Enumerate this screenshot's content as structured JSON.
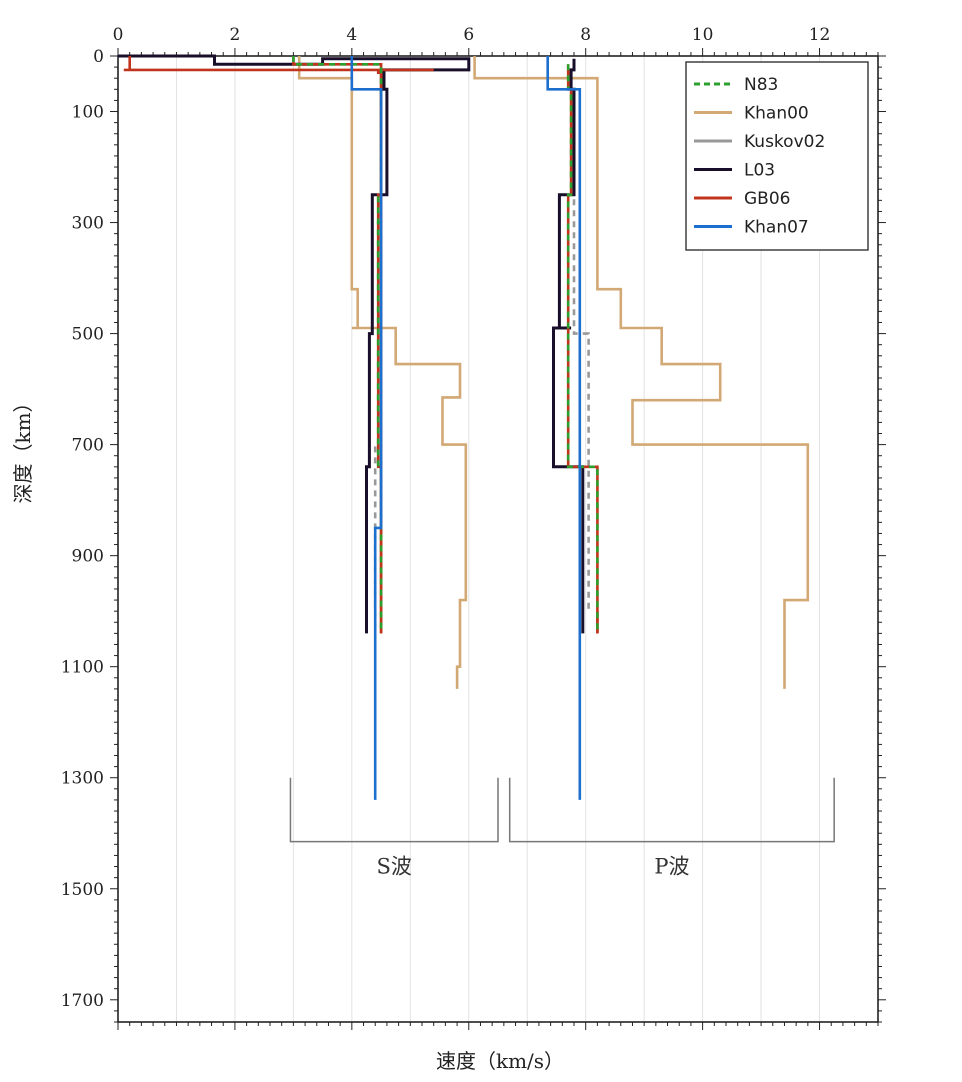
{
  "chart_data": {
    "type": "line",
    "xlabel": "速度（km/s）",
    "ylabel": "深度（km）",
    "xlim": [
      0,
      13
    ],
    "ylim": [
      0,
      1740
    ],
    "x_ticks": [
      0,
      2,
      4,
      6,
      8,
      10,
      12
    ],
    "y_ticks": [
      0,
      100,
      300,
      500,
      700,
      900,
      1100,
      1300,
      1500,
      1700
    ],
    "grid": "vertical",
    "legend_position": "top-right",
    "brackets": [
      {
        "label": "S波",
        "x_range": [
          2.95,
          6.5
        ],
        "y_top": 1300,
        "y_bottom": 1415
      },
      {
        "label": "P波",
        "x_range": [
          6.7,
          12.25
        ],
        "y_top": 1300,
        "y_bottom": 1415
      }
    ],
    "series": [
      {
        "name": "N83",
        "color": "#2ca02c",
        "style": "dashed",
        "S": {
          "v": [
            3.0,
            3.0,
            4.5,
            4.5,
            4.45,
            4.45,
            4.5,
            4.5
          ],
          "d": [
            0,
            15,
            15,
            250,
            250,
            740,
            740,
            1040
          ]
        },
        "P": {
          "v": [
            7.7,
            7.7,
            7.75,
            7.75,
            7.7,
            7.7,
            8.2,
            8.2
          ],
          "d": [
            15,
            60,
            60,
            250,
            250,
            740,
            740,
            1040
          ]
        }
      },
      {
        "name": "Khan00",
        "color": "#d2a874",
        "style": "solid",
        "S": {
          "v": [
            3.1,
            3.1,
            4.0,
            4.0,
            4.1,
            4.1,
            4.0,
            4.0,
            4.75,
            4.75,
            5.85,
            5.85,
            5.55,
            5.55,
            5.95,
            5.95,
            5.85,
            5.85,
            5.8,
            5.8
          ],
          "d": [
            0,
            40,
            40,
            420,
            420,
            490,
            490,
            490,
            490,
            555,
            555,
            615,
            615,
            700,
            700,
            980,
            980,
            1100,
            1100,
            1140
          ]
        },
        "P": {
          "v": [
            6.1,
            6.1,
            8.2,
            8.2,
            8.6,
            8.6,
            9.3,
            9.3,
            10.3,
            10.3,
            8.8,
            8.8,
            11.8,
            11.8,
            11.4,
            11.4
          ],
          "d": [
            0,
            40,
            40,
            420,
            420,
            490,
            490,
            555,
            555,
            620,
            620,
            700,
            700,
            980,
            980,
            1140
          ]
        }
      },
      {
        "name": "Kuskov02",
        "color": "#999999",
        "style": "dashed",
        "S": {
          "v": [
            4.5,
            4.5,
            4.45,
            4.45,
            4.4,
            4.4
          ],
          "d": [
            60,
            300,
            300,
            700,
            700,
            1000
          ]
        },
        "P": {
          "v": [
            7.8,
            7.8,
            8.05,
            8.05
          ],
          "d": [
            60,
            500,
            500,
            1000
          ]
        }
      },
      {
        "name": "L03",
        "color": "#1a0f2a",
        "style": "solid",
        "S": {
          "v": [
            0.0,
            1.65,
            1.65,
            3.5,
            3.5,
            6.0,
            6.0,
            4.55,
            4.55,
            4.6,
            4.6,
            4.35,
            4.35,
            4.3,
            4.3,
            4.25,
            4.25
          ],
          "d": [
            0,
            0,
            15,
            15,
            5,
            5,
            25,
            25,
            60,
            60,
            250,
            250,
            500,
            500,
            740,
            740,
            1040
          ]
        },
        "P": {
          "v": [
            7.8,
            7.8,
            7.75,
            7.75,
            7.8,
            7.8,
            7.55,
            7.55,
            7.75,
            7.75,
            7.45,
            7.45,
            7.95,
            7.95
          ],
          "d": [
            5,
            25,
            25,
            60,
            60,
            250,
            250,
            490,
            490,
            490,
            490,
            740,
            740,
            1040
          ]
        }
      },
      {
        "name": "GB06",
        "color": "#c0341d",
        "style": "solid",
        "S": {
          "v": [
            0.2,
            0.2,
            0.1,
            0.1,
            5.4,
            5.4,
            4.45,
            4.45,
            4.5,
            4.5
          ],
          "d": [
            0,
            25,
            25,
            25,
            25,
            25,
            25,
            30,
            30,
            1040
          ]
        },
        "P": {
          "v": [
            8.2,
            8.2
          ],
          "d": [
            1000,
            1040
          ]
        }
      },
      {
        "name": "Khan07",
        "color": "#1c6fce",
        "style": "solid",
        "S": {
          "v": [
            4.0,
            4.0,
            4.5,
            4.5,
            4.4,
            4.4
          ],
          "d": [
            0,
            60,
            60,
            850,
            850,
            1340
          ]
        },
        "P": {
          "v": [
            7.35,
            7.35,
            7.9,
            7.9
          ],
          "d": [
            0,
            60,
            60,
            1340
          ]
        }
      }
    ]
  }
}
